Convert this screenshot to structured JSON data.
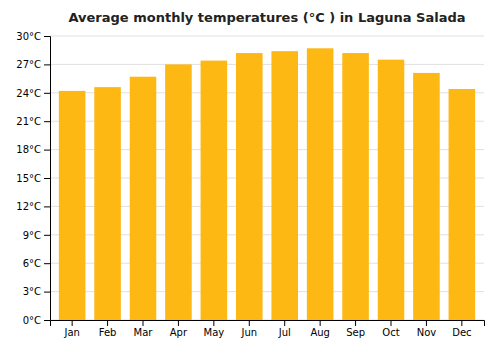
{
  "chart_data": {
    "type": "bar",
    "title": "Average monthly temperatures (°C ) in Laguna Salada",
    "categories": [
      "Jan",
      "Feb",
      "Mar",
      "Apr",
      "May",
      "Jun",
      "Jul",
      "Aug",
      "Sep",
      "Oct",
      "Nov",
      "Dec"
    ],
    "values": [
      24.2,
      24.6,
      25.7,
      27.0,
      27.4,
      28.2,
      28.4,
      28.7,
      28.2,
      27.5,
      26.1,
      24.4
    ],
    "color": "#FDB813",
    "ylim": [
      0,
      30
    ],
    "yticks": [
      {
        "value": 0,
        "label": "0°C"
      },
      {
        "value": 3,
        "label": "3°C"
      },
      {
        "value": 6,
        "label": "6°C"
      },
      {
        "value": 9,
        "label": "9°C"
      },
      {
        "value": 12,
        "label": "12°C"
      },
      {
        "value": 15,
        "label": "15°C"
      },
      {
        "value": 18,
        "label": "18°C"
      },
      {
        "value": 21,
        "label": "21°C"
      },
      {
        "value": 24,
        "label": "24°C"
      },
      {
        "value": 27,
        "label": "27°C"
      },
      {
        "value": 30,
        "label": "30°C"
      }
    ],
    "grid": true
  }
}
